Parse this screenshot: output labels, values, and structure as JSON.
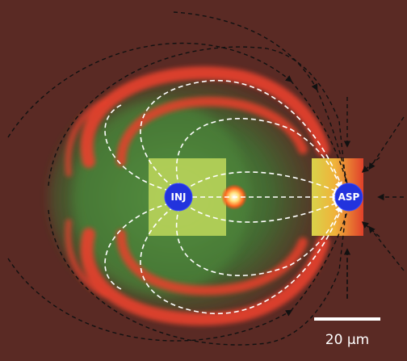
{
  "labels": {
    "injector": "INJ",
    "aspirator": "ASP"
  },
  "scale_bar": {
    "label": "20 µm"
  },
  "colors": {
    "background": "#5a2a24",
    "fluorescence_green": "#4f8a3c",
    "fluorescence_red": "#e23a2a",
    "aperture_fill": "#2233dd",
    "streamline_white": "#ffffff",
    "field_line_black": "#111111"
  },
  "icons": {
    "injection_aperture": "blue-circle-icon",
    "aspiration_aperture": "blue-circle-icon",
    "flow_arrow": "arrowhead-icon"
  }
}
